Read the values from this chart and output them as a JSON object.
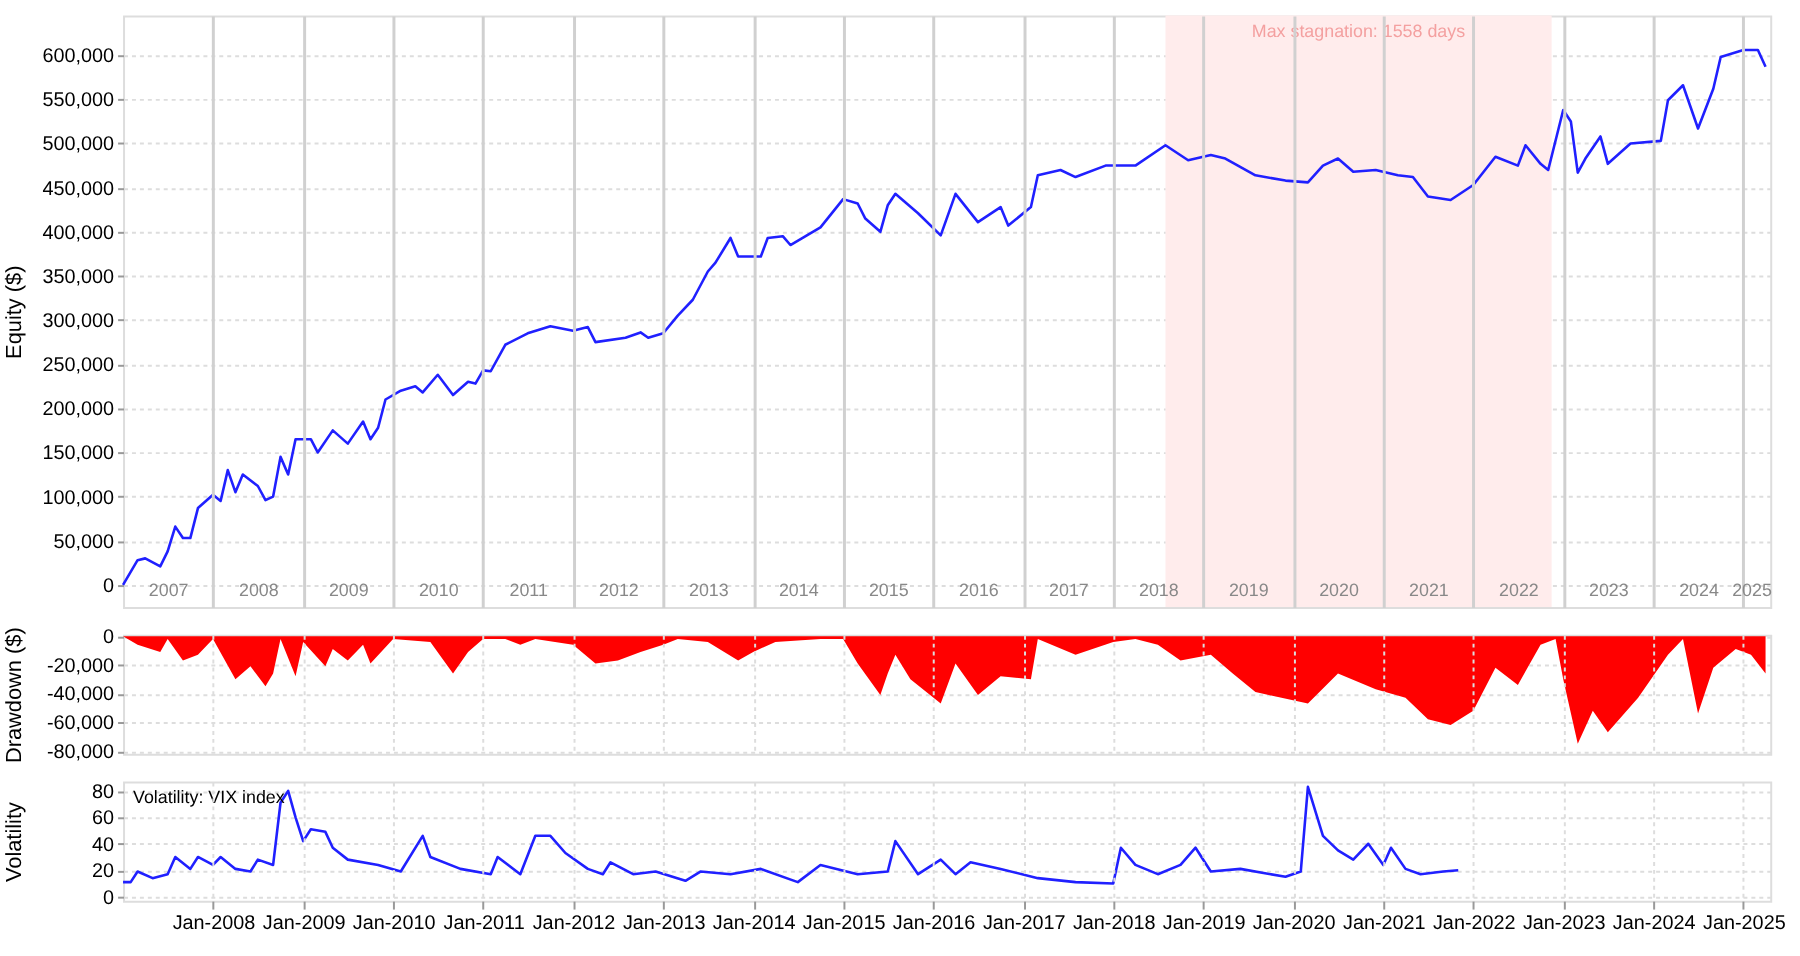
{
  "chart_data": [
    {
      "type": "line",
      "ylabel": "Equity ($)",
      "xlim": [
        "2007-01-01",
        "2025-04-20"
      ],
      "ylim": [
        -25000,
        645000
      ],
      "yticks": [
        0,
        {
          "value": 50000,
          "label": "50,000"
        },
        {
          "value": 100000,
          "label": "100,000"
        },
        {
          "value": 150000,
          "label": "150,000"
        },
        {
          "value": 200000,
          "label": "200,000"
        },
        {
          "value": 250000,
          "label": "250,000"
        },
        {
          "value": 300000,
          "label": "300,000"
        },
        {
          "value": 350000,
          "label": "350,000"
        },
        {
          "value": 400000,
          "label": "400,000"
        },
        {
          "value": 450000,
          "label": "450,000"
        },
        {
          "value": 500000,
          "label": "500,000"
        },
        {
          "value": 550000,
          "label": "550,000"
        },
        {
          "value": 600000,
          "label": "600,000"
        }
      ],
      "xticks": [
        {
          "value": "2007-07-01",
          "label": "2007"
        },
        {
          "value": "2008-07-01",
          "label": "2008"
        },
        {
          "value": "2009-07-01",
          "label": "2009"
        },
        {
          "value": "2010-07-01",
          "label": "2010"
        },
        {
          "value": "2011-07-01",
          "label": "2011"
        },
        {
          "value": "2012-07-01",
          "label": "2012"
        },
        {
          "value": "2013-07-01",
          "label": "2013"
        },
        {
          "value": "2014-07-01",
          "label": "2014"
        },
        {
          "value": "2015-07-01",
          "label": "2015"
        },
        {
          "value": "2016-07-01",
          "label": "2016"
        },
        {
          "value": "2017-07-01",
          "label": "2017"
        },
        {
          "value": "2018-07-01",
          "label": "2018"
        },
        {
          "value": "2019-07-01",
          "label": "2019"
        },
        {
          "value": "2020-07-01",
          "label": "2020"
        },
        {
          "value": "2021-07-01",
          "label": "2021"
        },
        {
          "value": "2022-07-01",
          "label": "2022"
        },
        {
          "value": "2023-07-01",
          "label": "2023"
        },
        {
          "value": "2024-07-01",
          "label": "2024"
        },
        {
          "value": "2025-02-01",
          "label": "2025"
        },
        {
          "value": "2008-01-01",
          "label": null
        },
        {
          "value": "2009-01-01",
          "label": null
        },
        {
          "value": "2010-01-01",
          "label": null
        },
        {
          "value": "2011-01-01",
          "label": null
        },
        {
          "value": "2012-01-01",
          "label": null
        },
        {
          "value": "2013-01-01",
          "label": null
        },
        {
          "value": "2014-01-01",
          "label": null
        },
        {
          "value": "2015-01-01",
          "label": null
        },
        {
          "value": "2016-01-01",
          "label": null
        },
        {
          "value": "2017-01-01",
          "label": null
        },
        {
          "value": "2018-01-01",
          "label": null
        },
        {
          "value": "2019-01-01",
          "label": null
        },
        {
          "value": "2020-01-01",
          "label": null
        },
        {
          "value": "2021-01-01",
          "label": null
        },
        {
          "value": "2022-01-01",
          "label": null
        },
        {
          "value": "2023-01-01",
          "label": null
        },
        {
          "value": "2024-01-01",
          "label": null
        },
        {
          "value": "2025-01-01",
          "label": null
        }
      ],
      "grid": true,
      "bands": [
        {
          "axis": "x",
          "from": "2018-08-01",
          "to": "2022-11-15",
          "label": "Max stagnation: 1558 days",
          "color": "#ffecec"
        }
      ],
      "x": [
        "2007-01",
        "2007-03",
        "2007-04",
        "2007-06",
        "2007-07",
        "2007-08",
        "2007-09",
        "2007-10",
        "2007-11",
        "2008-01",
        "2008-02",
        "2008-03",
        "2008-04",
        "2008-05",
        "2008-07",
        "2008-08",
        "2008-09",
        "2008-10",
        "2008-11",
        "2008-12",
        "2009-02",
        "2009-03",
        "2009-05",
        "2009-07",
        "2009-09",
        "2009-10",
        "2009-11",
        "2009-12",
        "2010-02",
        "2010-04",
        "2010-05",
        "2010-07",
        "2010-09",
        "2010-11",
        "2010-12",
        "2011-01",
        "2011-02",
        "2011-04",
        "2011-07",
        "2011-10",
        "2012-01",
        "2012-03",
        "2012-04",
        "2012-08",
        "2012-10",
        "2012-11",
        "2013-01",
        "2013-03",
        "2013-05",
        "2013-07",
        "2013-08",
        "2013-10",
        "2013-11",
        "2014-02",
        "2014-03",
        "2014-05",
        "2014-06",
        "2014-10",
        "2015-01",
        "2015-03",
        "2015-04",
        "2015-06",
        "2015-07",
        "2015-08",
        "2015-11",
        "2016-02",
        "2016-04",
        "2016-07",
        "2016-10",
        "2016-11",
        "2017-02",
        "2017-03",
        "2017-06",
        "2017-08",
        "2017-12",
        "2018-04",
        "2018-08",
        "2018-11",
        "2019-02",
        "2019-04",
        "2019-08",
        "2019-12",
        "2020-03",
        "2020-05",
        "2020-07",
        "2020-09",
        "2020-12",
        "2021-03",
        "2021-05",
        "2021-07",
        "2021-10",
        "2022-01",
        "2022-04",
        "2022-07",
        "2022-08",
        "2022-10",
        "2022-11",
        "2023-01",
        "2023-02",
        "2023-03",
        "2023-04",
        "2023-06",
        "2023-07",
        "2023-10",
        "2024-02",
        "2024-03",
        "2024-05",
        "2024-07",
        "2024-09",
        "2024-10",
        "2025-01",
        "2025-03",
        "2025-04"
      ],
      "series": [
        {
          "color": "#2020ff",
          "values": [
            0,
            28000,
            30000,
            21000,
            38000,
            66000,
            53000,
            53000,
            87000,
            102000,
            95000,
            130000,
            105000,
            125000,
            112000,
            96000,
            100000,
            145000,
            125000,
            165000,
            165000,
            150000,
            175000,
            160000,
            185000,
            165000,
            178000,
            210000,
            220000,
            225000,
            218000,
            238000,
            215000,
            230000,
            228000,
            243000,
            242000,
            272000,
            285000,
            293000,
            288000,
            292000,
            275000,
            280000,
            286000,
            280000,
            285000,
            305000,
            323000,
            355000,
            365000,
            393000,
            372000,
            372000,
            393000,
            395000,
            385000,
            405000,
            437000,
            432000,
            415000,
            400000,
            430000,
            443000,
            421000,
            396000,
            443000,
            411000,
            428000,
            407000,
            428000,
            464000,
            470000,
            462000,
            475000,
            475000,
            498000,
            481000,
            487000,
            483000,
            464000,
            458000,
            456000,
            475000,
            483000,
            468000,
            470000,
            464000,
            462000,
            440000,
            436000,
            453000,
            485000,
            475000,
            498000,
            477000,
            470000,
            538000,
            525000,
            467000,
            483000,
            508000,
            477000,
            500000,
            503000,
            549000,
            566000,
            517000,
            562000,
            598000,
            606000,
            606000,
            587000
          ]
        }
      ]
    },
    {
      "type": "area",
      "ylabel": "Drawdown ($)",
      "xlim": [
        "2007-01-01",
        "2025-04-20"
      ],
      "ylim": [
        -82000,
        1000
      ],
      "yticks": [
        0,
        {
          "value": -20000,
          "label": "-20,000"
        },
        {
          "value": -40000,
          "label": "-40,000"
        },
        {
          "value": -60000,
          "label": "-60,000"
        },
        {
          "value": -80000,
          "label": "-80,000"
        }
      ],
      "xticks": [
        "2008-01-01",
        "2009-01-01",
        "2010-01-01",
        "2011-01-01",
        "2012-01-01",
        "2013-01-01",
        "2014-01-01",
        "2015-01-01",
        "2016-01-01",
        "2017-01-01",
        "2018-01-01",
        "2019-01-01",
        "2020-01-01",
        "2021-01-01",
        "2022-01-01",
        "2023-01-01",
        "2024-01-01",
        "2025-01-01"
      ],
      "tick_labels": "y",
      "grid": true,
      "x": [
        "2007-01",
        "2007-03",
        "2007-06",
        "2007-07",
        "2007-09",
        "2007-11",
        "2008-01",
        "2008-04",
        "2008-06",
        "2008-08",
        "2008-09",
        "2008-10",
        "2008-12",
        "2009-01",
        "2009-04",
        "2009-05",
        "2009-07",
        "2009-09",
        "2009-10",
        "2010-01",
        "2010-06",
        "2010-09",
        "2010-11",
        "2011-01",
        "2011-04",
        "2011-06",
        "2011-08",
        "2012-01",
        "2012-04",
        "2012-07",
        "2012-10",
        "2013-01",
        "2013-03",
        "2013-07",
        "2013-11",
        "2014-01",
        "2014-04",
        "2014-10",
        "2015-01",
        "2015-03",
        "2015-06",
        "2015-07",
        "2015-08",
        "2015-10",
        "2016-02",
        "2016-04",
        "2016-07",
        "2016-10",
        "2017-02",
        "2017-03",
        "2017-08",
        "2018-01",
        "2018-04",
        "2018-07",
        "2018-10",
        "2019-02",
        "2019-05",
        "2019-08",
        "2020-03",
        "2020-07",
        "2020-12",
        "2021-04",
        "2021-07",
        "2021-10",
        "2022-01",
        "2022-04",
        "2022-07",
        "2022-10",
        "2022-12",
        "2023-01",
        "2023-03",
        "2023-05",
        "2023-07",
        "2023-11",
        "2024-03",
        "2024-05",
        "2024-07",
        "2024-09",
        "2024-12",
        "2025-02",
        "2025-04"
      ],
      "series": [
        {
          "color": "#ff0000",
          "values": [
            0,
            -6000,
            -11000,
            -2000,
            -17000,
            -13000,
            -2000,
            -30000,
            -21000,
            -35000,
            -26000,
            -2000,
            -28000,
            -4000,
            -21000,
            -9000,
            -17000,
            -6000,
            -19000,
            -2000,
            -4000,
            -26000,
            -11000,
            -2000,
            -2000,
            -6000,
            -2000,
            -6000,
            -19000,
            -17000,
            -11000,
            -6000,
            -2000,
            -4000,
            -17000,
            -11000,
            -4000,
            -2000,
            -2000,
            -19000,
            -41000,
            -26000,
            -13000,
            -30000,
            -47000,
            -19000,
            -41000,
            -28000,
            -30000,
            -2000,
            -13000,
            -4000,
            -2000,
            -6000,
            -17000,
            -13000,
            -26000,
            -39000,
            -47000,
            -26000,
            -37000,
            -43000,
            -58000,
            -62000,
            -52000,
            -22000,
            -34000,
            -6000,
            -2000,
            -30000,
            -75000,
            -52000,
            -67000,
            -43000,
            -13000,
            -2000,
            -54000,
            -22000,
            -9000,
            -13000,
            -26000
          ]
        }
      ]
    },
    {
      "type": "line",
      "ylabel": "Volatility",
      "xlim": [
        "2007-01-01",
        "2025-04-20"
      ],
      "ylim": [
        -3,
        87
      ],
      "yticks": [
        0,
        20,
        40,
        60,
        80
      ],
      "xticks": [
        {
          "value": "2008-01-01",
          "label": "Jan-2008"
        },
        {
          "value": "2009-01-01",
          "label": "Jan-2009"
        },
        {
          "value": "2010-01-01",
          "label": "Jan-2010"
        },
        {
          "value": "2011-01-01",
          "label": "Jan-2011"
        },
        {
          "value": "2012-01-01",
          "label": "Jan-2012"
        },
        {
          "value": "2013-01-01",
          "label": "Jan-2013"
        },
        {
          "value": "2014-01-01",
          "label": "Jan-2014"
        },
        {
          "value": "2015-01-01",
          "label": "Jan-2015"
        },
        {
          "value": "2016-01-01",
          "label": "Jan-2016"
        },
        {
          "value": "2017-01-01",
          "label": "Jan-2017"
        },
        {
          "value": "2018-01-01",
          "label": "Jan-2018"
        },
        {
          "value": "2019-01-01",
          "label": "Jan-2019"
        },
        {
          "value": "2020-01-01",
          "label": "Jan-2020"
        },
        {
          "value": "2021-01-01",
          "label": "Jan-2021"
        },
        {
          "value": "2022-01-01",
          "label": "Jan-2022"
        },
        {
          "value": "2023-01-01",
          "label": "Jan-2023"
        },
        {
          "value": "2024-01-01",
          "label": "Jan-2024"
        },
        {
          "value": "2025-01-01",
          "label": "Jan-2025"
        }
      ],
      "grid": true,
      "annotations": [
        "Volatility: VIX index"
      ],
      "x": [
        "2007-01",
        "2007-02",
        "2007-03",
        "2007-05",
        "2007-07",
        "2007-08",
        "2007-10",
        "2007-11",
        "2008-01",
        "2008-02",
        "2008-04",
        "2008-06",
        "2008-07",
        "2008-09",
        "2008-10",
        "2008-11",
        "2008-12",
        "2009-01",
        "2009-02",
        "2009-04",
        "2009-05",
        "2009-07",
        "2009-11",
        "2010-02",
        "2010-05",
        "2010-06",
        "2010-10",
        "2011-02",
        "2011-03",
        "2011-06",
        "2011-08",
        "2011-10",
        "2011-12",
        "2012-03",
        "2012-05",
        "2012-06",
        "2012-09",
        "2012-12",
        "2013-04",
        "2013-06",
        "2013-10",
        "2014-02",
        "2014-07",
        "2014-10",
        "2015-03",
        "2015-07",
        "2015-08",
        "2015-11",
        "2016-02",
        "2016-04",
        "2016-06",
        "2016-10",
        "2017-03",
        "2017-08",
        "2018-01",
        "2018-02",
        "2018-04",
        "2018-07",
        "2018-10",
        "2018-12",
        "2019-02",
        "2019-06",
        "2019-12",
        "2020-02",
        "2020-03",
        "2020-05",
        "2020-07",
        "2020-09",
        "2020-11",
        "2021-01",
        "2021-02",
        "2021-04",
        "2021-06",
        "2021-09",
        "2021-11"
      ],
      "series": [
        {
          "color": "#2020ff",
          "values": [
            11,
            11,
            19,
            14,
            17,
            30,
            21,
            30,
            24,
            30,
            21,
            19,
            28,
            24,
            71,
            80,
            60,
            42,
            51,
            49,
            37,
            28,
            24,
            19,
            46,
            30,
            21,
            17,
            30,
            17,
            46,
            46,
            33,
            21,
            17,
            26,
            17,
            19,
            12,
            19,
            17,
            21,
            11,
            24,
            17,
            19,
            42,
            17,
            28,
            17,
            26,
            21,
            14,
            11,
            10,
            37,
            24,
            17,
            24,
            37,
            19,
            21,
            15,
            19,
            83,
            46,
            35,
            28,
            40,
            24,
            37,
            21,
            17,
            19,
            20
          ]
        }
      ]
    }
  ]
}
